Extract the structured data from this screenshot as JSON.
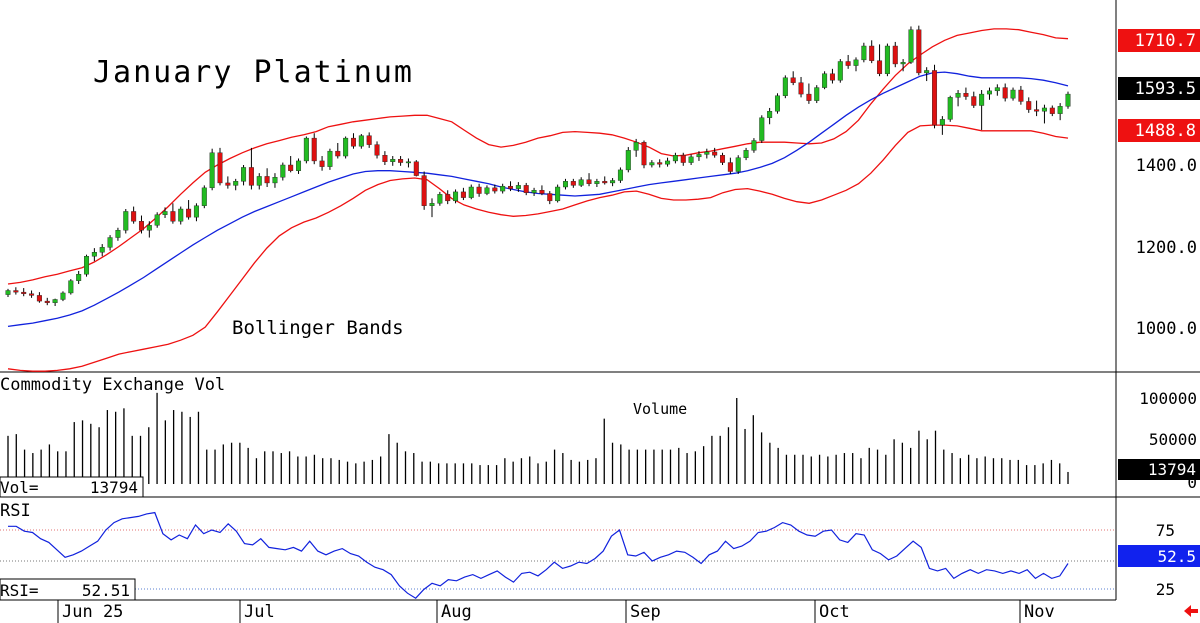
{
  "chart_data": {
    "type": "candlestick",
    "title": "January Platinum",
    "annotation_bands": "Bollinger Bands",
    "price_axis": {
      "ticks": [
        "1000.0",
        "1200.0",
        "1400.0"
      ],
      "ylim": [
        940,
        1760
      ]
    },
    "price_tags": {
      "upper": {
        "label": "1710.7",
        "value": 1710.7,
        "color": "#ee1111"
      },
      "last": {
        "label": "1593.5",
        "value": 1593.5,
        "color": "#000000"
      },
      "lower": {
        "label": "1488.8",
        "value": 1488.8,
        "color": "#ee1111"
      }
    },
    "colors": {
      "up": "#22bb22",
      "down": "#dd1111",
      "upper_band": "#ee1111",
      "middle_band": "#1122dd",
      "rsi": "#1122dd",
      "volume": "#000000"
    },
    "candles": [
      [
        1082,
        1096,
        1076,
        1092
      ],
      [
        1092,
        1100,
        1082,
        1088
      ],
      [
        1088,
        1098,
        1078,
        1084
      ],
      [
        1084,
        1092,
        1074,
        1080
      ],
      [
        1080,
        1088,
        1062,
        1066
      ],
      [
        1066,
        1074,
        1056,
        1062
      ],
      [
        1062,
        1072,
        1054,
        1070
      ],
      [
        1070,
        1090,
        1066,
        1086
      ],
      [
        1086,
        1120,
        1082,
        1116
      ],
      [
        1116,
        1140,
        1108,
        1132
      ],
      [
        1132,
        1180,
        1126,
        1176
      ],
      [
        1176,
        1196,
        1164,
        1186
      ],
      [
        1186,
        1206,
        1176,
        1198
      ],
      [
        1198,
        1228,
        1190,
        1222
      ],
      [
        1222,
        1246,
        1214,
        1240
      ],
      [
        1240,
        1292,
        1232,
        1286
      ],
      [
        1286,
        1298,
        1256,
        1262
      ],
      [
        1262,
        1276,
        1232,
        1240
      ],
      [
        1240,
        1262,
        1222,
        1252
      ],
      [
        1252,
        1284,
        1246,
        1278
      ],
      [
        1278,
        1296,
        1270,
        1286
      ],
      [
        1286,
        1306,
        1256,
        1262
      ],
      [
        1262,
        1298,
        1254,
        1292
      ],
      [
        1292,
        1314,
        1266,
        1272
      ],
      [
        1272,
        1306,
        1262,
        1300
      ],
      [
        1300,
        1350,
        1294,
        1344
      ],
      [
        1344,
        1440,
        1338,
        1430
      ],
      [
        1430,
        1442,
        1350,
        1356
      ],
      [
        1356,
        1372,
        1342,
        1350
      ],
      [
        1350,
        1366,
        1338,
        1360
      ],
      [
        1360,
        1400,
        1350,
        1394
      ],
      [
        1394,
        1442,
        1340,
        1350
      ],
      [
        1350,
        1380,
        1340,
        1372
      ],
      [
        1372,
        1392,
        1346,
        1356
      ],
      [
        1356,
        1380,
        1344,
        1370
      ],
      [
        1370,
        1406,
        1362,
        1400
      ],
      [
        1400,
        1422,
        1382,
        1386
      ],
      [
        1386,
        1416,
        1378,
        1410
      ],
      [
        1410,
        1470,
        1404,
        1466
      ],
      [
        1466,
        1478,
        1402,
        1410
      ],
      [
        1410,
        1422,
        1386,
        1396
      ],
      [
        1396,
        1440,
        1388,
        1434
      ],
      [
        1434,
        1454,
        1416,
        1422
      ],
      [
        1422,
        1470,
        1416,
        1466
      ],
      [
        1466,
        1478,
        1440,
        1446
      ],
      [
        1446,
        1476,
        1440,
        1472
      ],
      [
        1472,
        1480,
        1442,
        1450
      ],
      [
        1450,
        1458,
        1416,
        1424
      ],
      [
        1424,
        1434,
        1400,
        1408
      ],
      [
        1408,
        1422,
        1398,
        1414
      ],
      [
        1414,
        1422,
        1398,
        1406
      ],
      [
        1406,
        1416,
        1394,
        1408
      ],
      [
        1408,
        1412,
        1372,
        1374
      ],
      [
        1374,
        1384,
        1290,
        1300
      ],
      [
        1300,
        1318,
        1272,
        1306
      ],
      [
        1306,
        1334,
        1300,
        1328
      ],
      [
        1328,
        1338,
        1304,
        1312
      ],
      [
        1312,
        1340,
        1306,
        1334
      ],
      [
        1334,
        1344,
        1314,
        1320
      ],
      [
        1320,
        1352,
        1316,
        1346
      ],
      [
        1346,
        1354,
        1322,
        1330
      ],
      [
        1330,
        1350,
        1326,
        1344
      ],
      [
        1344,
        1352,
        1330,
        1336
      ],
      [
        1336,
        1354,
        1330,
        1348
      ],
      [
        1348,
        1360,
        1336,
        1342
      ],
      [
        1342,
        1358,
        1334,
        1350
      ],
      [
        1350,
        1356,
        1326,
        1332
      ],
      [
        1332,
        1344,
        1324,
        1338
      ],
      [
        1338,
        1350,
        1326,
        1330
      ],
      [
        1330,
        1336,
        1304,
        1312
      ],
      [
        1312,
        1352,
        1308,
        1346
      ],
      [
        1346,
        1366,
        1340,
        1360
      ],
      [
        1360,
        1366,
        1344,
        1350
      ],
      [
        1350,
        1370,
        1346,
        1364
      ],
      [
        1364,
        1380,
        1348,
        1354
      ],
      [
        1354,
        1366,
        1346,
        1360
      ],
      [
        1360,
        1372,
        1352,
        1356
      ],
      [
        1356,
        1368,
        1348,
        1362
      ],
      [
        1362,
        1394,
        1356,
        1388
      ],
      [
        1388,
        1444,
        1382,
        1436
      ],
      [
        1436,
        1464,
        1420,
        1456
      ],
      [
        1456,
        1460,
        1392,
        1400
      ],
      [
        1400,
        1412,
        1394,
        1406
      ],
      [
        1406,
        1414,
        1394,
        1402
      ],
      [
        1402,
        1418,
        1396,
        1410
      ],
      [
        1410,
        1430,
        1404,
        1424
      ],
      [
        1424,
        1430,
        1398,
        1406
      ],
      [
        1406,
        1426,
        1400,
        1420
      ],
      [
        1420,
        1434,
        1410,
        1426
      ],
      [
        1426,
        1440,
        1416,
        1432
      ],
      [
        1432,
        1442,
        1418,
        1424
      ],
      [
        1424,
        1430,
        1400,
        1406
      ],
      [
        1406,
        1418,
        1378,
        1384
      ],
      [
        1384,
        1424,
        1378,
        1418
      ],
      [
        1418,
        1442,
        1412,
        1436
      ],
      [
        1436,
        1466,
        1430,
        1460
      ],
      [
        1460,
        1522,
        1454,
        1516
      ],
      [
        1516,
        1540,
        1500,
        1532
      ],
      [
        1532,
        1576,
        1526,
        1570
      ],
      [
        1570,
        1620,
        1564,
        1614
      ],
      [
        1614,
        1630,
        1596,
        1602
      ],
      [
        1602,
        1616,
        1566,
        1574
      ],
      [
        1574,
        1600,
        1550,
        1558
      ],
      [
        1558,
        1596,
        1552,
        1590
      ],
      [
        1590,
        1630,
        1586,
        1624
      ],
      [
        1624,
        1636,
        1600,
        1608
      ],
      [
        1608,
        1660,
        1602,
        1654
      ],
      [
        1654,
        1670,
        1636,
        1644
      ],
      [
        1644,
        1664,
        1630,
        1658
      ],
      [
        1658,
        1700,
        1652,
        1692
      ],
      [
        1692,
        1706,
        1650,
        1656
      ],
      [
        1656,
        1696,
        1618,
        1624
      ],
      [
        1624,
        1698,
        1618,
        1692
      ],
      [
        1692,
        1702,
        1640,
        1648
      ],
      [
        1648,
        1660,
        1630,
        1652
      ],
      [
        1652,
        1740,
        1648,
        1732
      ],
      [
        1732,
        1742,
        1620,
        1626
      ],
      [
        1626,
        1640,
        1606,
        1632
      ],
      [
        1632,
        1646,
        1490,
        1498
      ],
      [
        1498,
        1520,
        1474,
        1512
      ],
      [
        1512,
        1570,
        1506,
        1566
      ],
      [
        1566,
        1584,
        1544,
        1576
      ],
      [
        1576,
        1590,
        1560,
        1568
      ],
      [
        1568,
        1580,
        1540,
        1546
      ],
      [
        1546,
        1584,
        1486,
        1574
      ],
      [
        1574,
        1590,
        1560,
        1582
      ],
      [
        1582,
        1598,
        1570,
        1590
      ],
      [
        1590,
        1600,
        1556,
        1564
      ],
      [
        1564,
        1590,
        1558,
        1584
      ],
      [
        1584,
        1594,
        1548,
        1556
      ],
      [
        1556,
        1566,
        1528,
        1536
      ],
      [
        1536,
        1558,
        1520,
        1532
      ],
      [
        1532,
        1548,
        1502,
        1540
      ],
      [
        1540,
        1546,
        1520,
        1526
      ],
      [
        1526,
        1552,
        1510,
        1544
      ],
      [
        1544,
        1580,
        1538,
        1574
      ]
    ],
    "upper_band": [
      1108,
      1112,
      1118,
      1126,
      1132,
      1140,
      1148,
      1162,
      1180,
      1200,
      1222,
      1244,
      1270,
      1298,
      1328,
      1356,
      1382,
      1400,
      1416,
      1430,
      1442,
      1452,
      1460,
      1468,
      1474,
      1482,
      1494,
      1500,
      1506,
      1510,
      1514,
      1518,
      1520,
      1522,
      1522,
      1514,
      1506,
      1486,
      1466,
      1450,
      1444,
      1448,
      1456,
      1466,
      1472,
      1480,
      1482,
      1480,
      1478,
      1474,
      1466,
      1456,
      1444,
      1428,
      1422,
      1424,
      1430,
      1434,
      1440,
      1446,
      1452,
      1456,
      1456,
      1456,
      1454,
      1452,
      1454,
      1464,
      1482,
      1510,
      1550,
      1586,
      1620,
      1648,
      1670,
      1690,
      1706,
      1718,
      1724,
      1730,
      1734,
      1734,
      1732,
      1726,
      1720,
      1712,
      1710
    ],
    "middle_band": [
      1004,
      1008,
      1012,
      1018,
      1024,
      1032,
      1042,
      1056,
      1072,
      1088,
      1106,
      1124,
      1144,
      1164,
      1184,
      1204,
      1222,
      1240,
      1256,
      1272,
      1286,
      1298,
      1310,
      1322,
      1334,
      1346,
      1358,
      1368,
      1378,
      1384,
      1386,
      1386,
      1384,
      1382,
      1380,
      1376,
      1372,
      1366,
      1360,
      1354,
      1346,
      1340,
      1334,
      1330,
      1328,
      1326,
      1324,
      1326,
      1328,
      1334,
      1340,
      1346,
      1352,
      1356,
      1360,
      1364,
      1368,
      1372,
      1376,
      1380,
      1386,
      1394,
      1404,
      1418,
      1436,
      1456,
      1478,
      1500,
      1522,
      1542,
      1560,
      1576,
      1590,
      1604,
      1618,
      1626,
      1628,
      1624,
      1618,
      1614,
      1614,
      1614,
      1614,
      1612,
      1608,
      1602,
      1594
    ],
    "lower_band": [
      900,
      896,
      894,
      894,
      896,
      900,
      906,
      916,
      926,
      936,
      942,
      948,
      954,
      960,
      970,
      982,
      1002,
      1040,
      1080,
      1120,
      1160,
      1196,
      1226,
      1246,
      1260,
      1270,
      1284,
      1300,
      1318,
      1338,
      1352,
      1362,
      1366,
      1368,
      1364,
      1342,
      1318,
      1302,
      1292,
      1284,
      1278,
      1274,
      1276,
      1280,
      1286,
      1292,
      1302,
      1312,
      1320,
      1326,
      1334,
      1336,
      1328,
      1318,
      1314,
      1314,
      1316,
      1320,
      1332,
      1340,
      1342,
      1336,
      1328,
      1318,
      1310,
      1306,
      1314,
      1326,
      1338,
      1354,
      1380,
      1412,
      1448,
      1480,
      1496,
      1498,
      1498,
      1496,
      1490,
      1484,
      1484,
      1484,
      1484,
      1484,
      1478,
      1470,
      1466
    ],
    "volume_axis": {
      "ticks": [
        "100000",
        "50000",
        "0"
      ],
      "ylim": [
        0,
        108000
      ]
    },
    "volume_label": "Commodity Exchange Vol",
    "volume_text": "Volume",
    "volume_readout": {
      "label": "Vol=",
      "value": "13794"
    },
    "volume_tag": "13794",
    "volume": [
      56000,
      58000,
      40000,
      36000,
      40000,
      46000,
      38000,
      38000,
      72000,
      74000,
      70000,
      66000,
      86000,
      84000,
      88000,
      56000,
      56000,
      66000,
      106000,
      74000,
      86000,
      84000,
      78000,
      84000,
      40000,
      40000,
      46000,
      48000,
      48000,
      42000,
      30000,
      38000,
      38000,
      36000,
      38000,
      32000,
      32000,
      34000,
      30000,
      30000,
      28000,
      26000,
      24000,
      26000,
      28000,
      32000,
      58000,
      48000,
      38000,
      36000,
      26000,
      26000,
      24000,
      24000,
      24000,
      24000,
      24000,
      22000,
      22000,
      22000,
      30000,
      26000,
      30000,
      32000,
      24000,
      26000,
      40000,
      36000,
      28000,
      26000,
      28000,
      30000,
      76000,
      48000,
      46000,
      40000,
      40000,
      40000,
      40000,
      40000,
      40000,
      42000,
      36000,
      38000,
      44000,
      56000,
      56000,
      66000,
      100000,
      64000,
      80000,
      60000,
      48000,
      42000,
      34000,
      34000,
      34000,
      32000,
      34000,
      32000,
      34000,
      36000,
      36000,
      30000,
      42000,
      40000,
      34000,
      52000,
      48000,
      42000,
      62000,
      52000,
      62000,
      40000,
      36000,
      30000,
      34000,
      30000,
      32000,
      30000,
      30000,
      28000,
      28000,
      22000,
      22000,
      24000,
      28000,
      24000,
      14000
    ],
    "rsi_axis": {
      "ticks": [
        "75",
        "25"
      ],
      "ylim": [
        10,
        100
      ]
    },
    "rsi_label": "RSI",
    "rsi_readout": {
      "label": "RSI=",
      "value": "52.51"
    },
    "rsi_tag": "52.5",
    "rsi_value": 52.5,
    "rsi": [
      78,
      78,
      74,
      73,
      68,
      65,
      59,
      53,
      55,
      58,
      62,
      66,
      75,
      81,
      84,
      85,
      86,
      88,
      89,
      72,
      67,
      71,
      68,
      79,
      72,
      75,
      73,
      80,
      74,
      64,
      63,
      68,
      61,
      60,
      59,
      61,
      58,
      66,
      58,
      55,
      58,
      60,
      56,
      54,
      49,
      45,
      43,
      39,
      30,
      24,
      20,
      27,
      32,
      30,
      35,
      34,
      37,
      39,
      36,
      39,
      42,
      37,
      33,
      40,
      41,
      38,
      43,
      49,
      44,
      46,
      49,
      48,
      52,
      58,
      70,
      75,
      55,
      54,
      57,
      50,
      53,
      55,
      58,
      57,
      53,
      48,
      55,
      58,
      66,
      60,
      62,
      66,
      73,
      74,
      77,
      81,
      79,
      74,
      71,
      70,
      74,
      75,
      67,
      65,
      72,
      71,
      59,
      56,
      51,
      54,
      60,
      66,
      61,
      44,
      42,
      44,
      36,
      40,
      43,
      40,
      43,
      42,
      40,
      42,
      40,
      43,
      36,
      40,
      36,
      38,
      48
    ]
  },
  "time_axis": {
    "labels": [
      "Jun 25",
      "Jul",
      "Aug",
      "Sep",
      "Oct",
      "Nov"
    ]
  }
}
